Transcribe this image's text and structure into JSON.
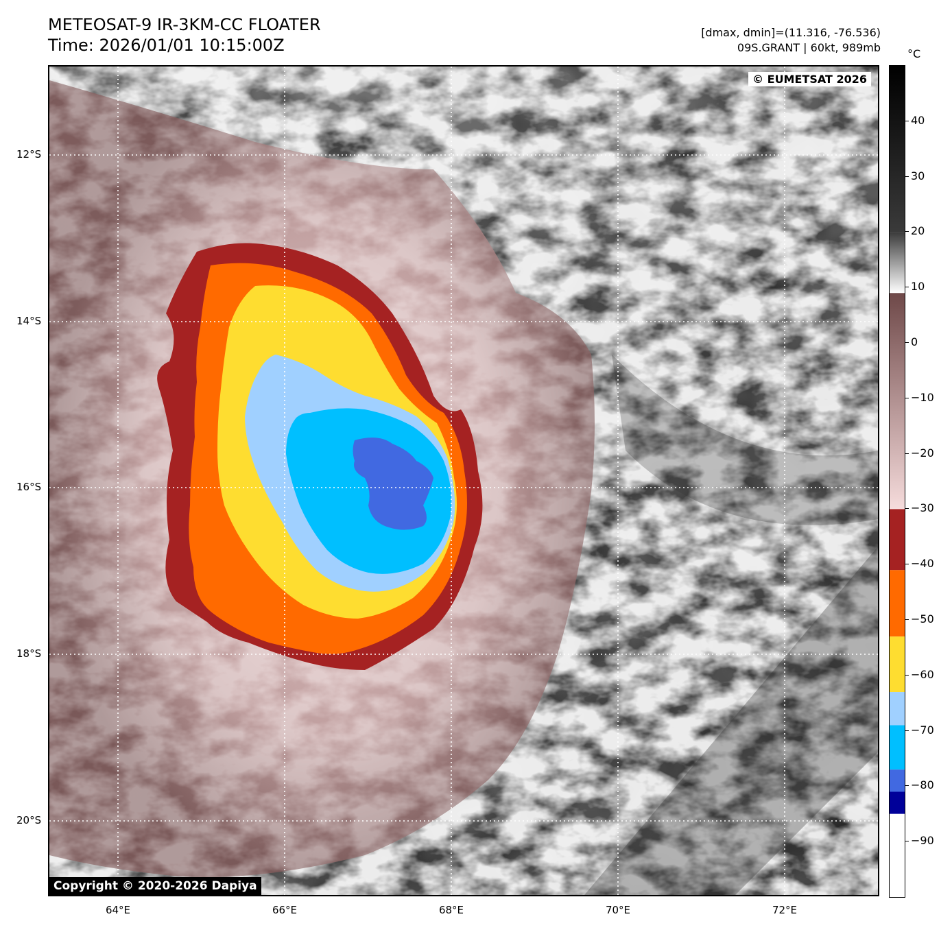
{
  "header": {
    "title_line1": "METEOSAT-9 IR-3KM-CC FLOATER",
    "title_line2": "Time: 2026/01/01 10:15:00Z",
    "dmax_dmin": "[dmax, dmin]=(11.316, -76.536)",
    "storm_info": "09S.GRANT | 60kt, 989mb"
  },
  "map": {
    "credit_top": "© EUMETSAT 2026",
    "credit_bottom": "Copyright © 2020-2026 Dapiya",
    "lat_labels": [
      "12°S",
      "14°S",
      "16°S",
      "18°S",
      "20°S"
    ],
    "lon_labels": [
      "64°E",
      "66°E",
      "68°E",
      "70°E",
      "72°E"
    ],
    "storm_center": {
      "lat": "16°S",
      "lon": "67.2°E"
    }
  },
  "colorbar": {
    "unit": "°C",
    "range": [
      -100,
      50
    ],
    "tick_values": [
      40,
      30,
      20,
      10,
      0,
      -10,
      -20,
      -30,
      -40,
      -50,
      -60,
      -70,
      -80,
      -90
    ],
    "tick_labels": [
      "40",
      "30",
      "20",
      "10",
      "0",
      "−10",
      "−20",
      "−30",
      "−40",
      "−50",
      "−60",
      "−70",
      "−80",
      "−90"
    ],
    "bands": [
      {
        "from": 50,
        "to": 20,
        "color_top": "#000000",
        "color_bottom": "#3a3a3a"
      },
      {
        "from": 20,
        "to": 9,
        "color_top": "#3a3a3a",
        "color_bottom": "#ffffff"
      },
      {
        "from": 9,
        "to": -30,
        "color_top": "#6e4848",
        "color_bottom": "#f6dcdc"
      },
      {
        "from": -30,
        "to": -41,
        "color": "#a52222"
      },
      {
        "from": -41,
        "to": -53,
        "color": "#ff6a00"
      },
      {
        "from": -53,
        "to": -63,
        "color": "#fedd30"
      },
      {
        "from": -63,
        "to": -69,
        "color": "#a0d0ff"
      },
      {
        "from": -69,
        "to": -77,
        "color": "#00bfff"
      },
      {
        "from": -77,
        "to": -81,
        "color": "#4169e1"
      },
      {
        "from": -81,
        "to": -85,
        "color": "#000099"
      },
      {
        "from": -85,
        "to": -100,
        "color": "#ffffff"
      }
    ]
  }
}
